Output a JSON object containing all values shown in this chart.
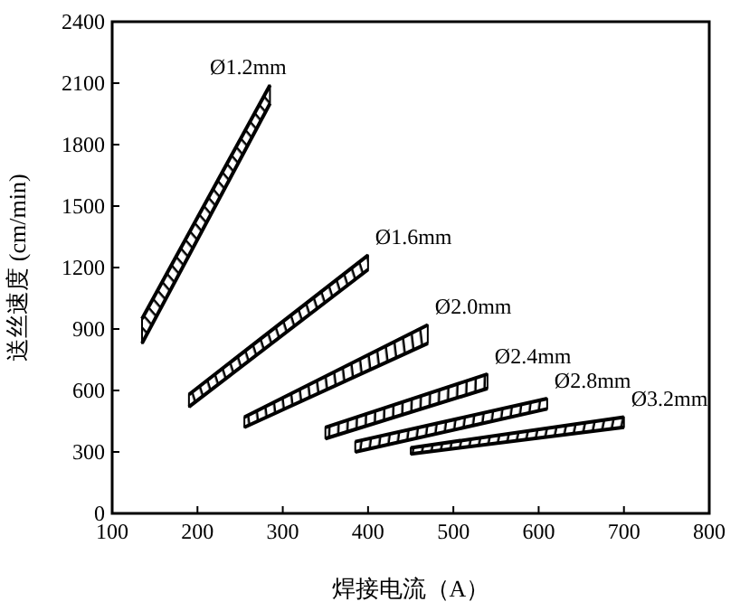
{
  "chart_data": {
    "type": "line",
    "xlabel": "焊接电流（A）",
    "ylabel": "送丝速度 (cm/min)",
    "xlim": [
      100,
      800
    ],
    "ylim": [
      0,
      2400
    ],
    "xticks": [
      100,
      200,
      300,
      400,
      500,
      600,
      700,
      800
    ],
    "yticks": [
      0,
      300,
      600,
      900,
      1200,
      1500,
      1800,
      2100,
      2400
    ],
    "grid": false,
    "series": [
      {
        "name": "Ø1.2mm",
        "color": "#000000",
        "x": [
          135,
          285
        ],
        "values": [
          950,
          2090
        ],
        "lower": [
          830,
          2000
        ],
        "upper": [
          950,
          2090
        ]
      },
      {
        "name": "Ø1.6mm",
        "color": "#000000",
        "x": [
          190,
          400
        ],
        "values": [
          580,
          1260
        ],
        "lower": [
          520,
          1190
        ],
        "upper": [
          580,
          1260
        ]
      },
      {
        "name": "Ø2.0mm",
        "color": "#000000",
        "x": [
          255,
          470
        ],
        "values": [
          470,
          920
        ],
        "lower": [
          420,
          830
        ],
        "upper": [
          470,
          920
        ]
      },
      {
        "name": "Ø2.4mm",
        "color": "#000000",
        "x": [
          350,
          540
        ],
        "values": [
          420,
          680
        ],
        "lower": [
          365,
          610
        ],
        "upper": [
          420,
          680
        ]
      },
      {
        "name": "Ø2.8mm",
        "color": "#000000",
        "x": [
          385,
          610
        ],
        "values": [
          350,
          560
        ],
        "lower": [
          300,
          510
        ],
        "upper": [
          350,
          560
        ]
      },
      {
        "name": "Ø3.2mm",
        "color": "#000000",
        "x": [
          450,
          700
        ],
        "values": [
          320,
          470
        ],
        "lower": [
          290,
          420
        ],
        "upper": [
          320,
          470
        ]
      }
    ]
  }
}
